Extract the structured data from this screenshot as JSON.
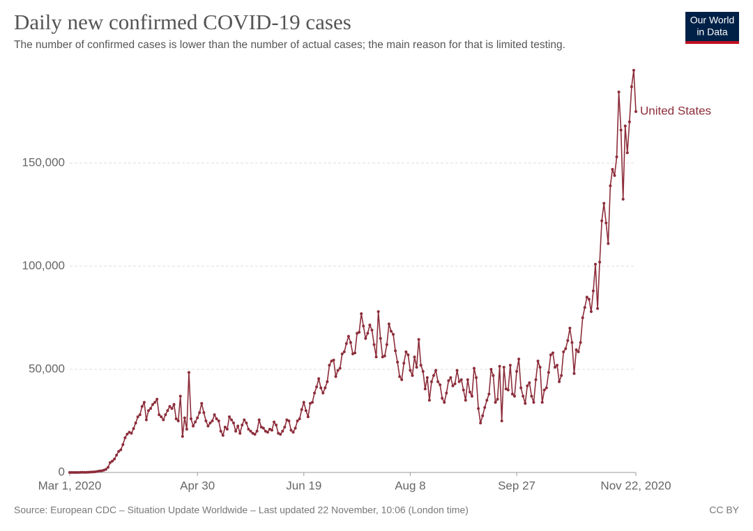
{
  "chart_data": {
    "type": "line",
    "title": "Daily new confirmed COVID-19 cases",
    "subtitle": "The number of confirmed cases is lower than the number of actual cases; the main reason for that is limited testing.",
    "source": "Source: European CDC – Situation Update Worldwide – Last updated 22 November, 10:06 (London time)",
    "license": "CC BY",
    "logo": [
      "Our World",
      "in Data"
    ],
    "x": [
      "2020-03-01",
      "2020-03-02",
      "2020-03-03",
      "2020-03-04",
      "2020-03-05",
      "2020-03-06",
      "2020-03-07",
      "2020-03-08",
      "2020-03-09",
      "2020-03-10",
      "2020-03-11",
      "2020-03-12",
      "2020-03-13",
      "2020-03-14",
      "2020-03-15",
      "2020-03-16",
      "2020-03-17",
      "2020-03-18",
      "2020-03-19",
      "2020-03-20",
      "2020-03-21",
      "2020-03-22",
      "2020-03-23",
      "2020-03-24",
      "2020-03-25",
      "2020-03-26",
      "2020-03-27",
      "2020-03-28",
      "2020-03-29",
      "2020-03-30",
      "2020-03-31",
      "2020-04-01",
      "2020-04-02",
      "2020-04-03",
      "2020-04-04",
      "2020-04-05",
      "2020-04-06",
      "2020-04-07",
      "2020-04-08",
      "2020-04-09",
      "2020-04-10",
      "2020-04-11",
      "2020-04-12",
      "2020-04-13",
      "2020-04-14",
      "2020-04-15",
      "2020-04-16",
      "2020-04-17",
      "2020-04-18",
      "2020-04-19",
      "2020-04-20",
      "2020-04-21",
      "2020-04-22",
      "2020-04-23",
      "2020-04-24",
      "2020-04-25",
      "2020-04-26",
      "2020-04-27",
      "2020-04-28",
      "2020-04-29",
      "2020-04-30",
      "2020-05-01",
      "2020-05-02",
      "2020-05-03",
      "2020-05-04",
      "2020-05-05",
      "2020-05-06",
      "2020-05-07",
      "2020-05-08",
      "2020-05-09",
      "2020-05-10",
      "2020-05-11",
      "2020-05-12",
      "2020-05-13",
      "2020-05-14",
      "2020-05-15",
      "2020-05-16",
      "2020-05-17",
      "2020-05-18",
      "2020-05-19",
      "2020-05-20",
      "2020-05-21",
      "2020-05-22",
      "2020-05-23",
      "2020-05-24",
      "2020-05-25",
      "2020-05-26",
      "2020-05-27",
      "2020-05-28",
      "2020-05-29",
      "2020-05-30",
      "2020-05-31",
      "2020-06-01",
      "2020-06-02",
      "2020-06-03",
      "2020-06-04",
      "2020-06-05",
      "2020-06-06",
      "2020-06-07",
      "2020-06-08",
      "2020-06-09",
      "2020-06-10",
      "2020-06-11",
      "2020-06-12",
      "2020-06-13",
      "2020-06-14",
      "2020-06-15",
      "2020-06-16",
      "2020-06-17",
      "2020-06-18",
      "2020-06-19",
      "2020-06-20",
      "2020-06-21",
      "2020-06-22",
      "2020-06-23",
      "2020-06-24",
      "2020-06-25",
      "2020-06-26",
      "2020-06-27",
      "2020-06-28",
      "2020-06-29",
      "2020-06-30",
      "2020-07-01",
      "2020-07-02",
      "2020-07-03",
      "2020-07-04",
      "2020-07-05",
      "2020-07-06",
      "2020-07-07",
      "2020-07-08",
      "2020-07-09",
      "2020-07-10",
      "2020-07-11",
      "2020-07-12",
      "2020-07-13",
      "2020-07-14",
      "2020-07-15",
      "2020-07-16",
      "2020-07-17",
      "2020-07-18",
      "2020-07-19",
      "2020-07-20",
      "2020-07-21",
      "2020-07-22",
      "2020-07-23",
      "2020-07-24",
      "2020-07-25",
      "2020-07-26",
      "2020-07-27",
      "2020-07-28",
      "2020-07-29",
      "2020-07-30",
      "2020-07-31",
      "2020-08-01",
      "2020-08-02",
      "2020-08-03",
      "2020-08-04",
      "2020-08-05",
      "2020-08-06",
      "2020-08-07",
      "2020-08-08",
      "2020-08-09",
      "2020-08-10",
      "2020-08-11",
      "2020-08-12",
      "2020-08-13",
      "2020-08-14",
      "2020-08-15",
      "2020-08-16",
      "2020-08-17",
      "2020-08-18",
      "2020-08-19",
      "2020-08-20",
      "2020-08-21",
      "2020-08-22",
      "2020-08-23",
      "2020-08-24",
      "2020-08-25",
      "2020-08-26",
      "2020-08-27",
      "2020-08-28",
      "2020-08-29",
      "2020-08-30",
      "2020-08-31",
      "2020-09-01",
      "2020-09-02",
      "2020-09-03",
      "2020-09-04",
      "2020-09-05",
      "2020-09-06",
      "2020-09-07",
      "2020-09-08",
      "2020-09-09",
      "2020-09-10",
      "2020-09-11",
      "2020-09-12",
      "2020-09-13",
      "2020-09-14",
      "2020-09-15",
      "2020-09-16",
      "2020-09-17",
      "2020-09-18",
      "2020-09-19",
      "2020-09-20",
      "2020-09-21",
      "2020-09-22",
      "2020-09-23",
      "2020-09-24",
      "2020-09-25",
      "2020-09-26",
      "2020-09-27",
      "2020-09-28",
      "2020-09-29",
      "2020-09-30",
      "2020-10-01",
      "2020-10-02",
      "2020-10-03",
      "2020-10-04",
      "2020-10-05",
      "2020-10-06",
      "2020-10-07",
      "2020-10-08",
      "2020-10-09",
      "2020-10-10",
      "2020-10-11",
      "2020-10-12",
      "2020-10-13",
      "2020-10-14",
      "2020-10-15",
      "2020-10-16",
      "2020-10-17",
      "2020-10-18",
      "2020-10-19",
      "2020-10-20",
      "2020-10-21",
      "2020-10-22",
      "2020-10-23",
      "2020-10-24",
      "2020-10-25",
      "2020-10-26",
      "2020-10-27",
      "2020-10-28",
      "2020-10-29",
      "2020-10-30",
      "2020-10-31",
      "2020-11-01",
      "2020-11-02",
      "2020-11-03",
      "2020-11-04",
      "2020-11-05",
      "2020-11-06",
      "2020-11-07",
      "2020-11-08",
      "2020-11-09",
      "2020-11-10",
      "2020-11-11",
      "2020-11-12",
      "2020-11-13",
      "2020-11-14",
      "2020-11-15",
      "2020-11-16",
      "2020-11-17",
      "2020-11-18",
      "2020-11-19",
      "2020-11-20",
      "2020-11-21",
      "2020-11-22"
    ],
    "series": [
      {
        "name": "United States",
        "color": "#8c2d3a",
        "values": [
          0,
          3,
          5,
          15,
          20,
          30,
          70,
          60,
          100,
          120,
          200,
          270,
          350,
          500,
          700,
          800,
          1100,
          1500,
          2500,
          4800,
          5500,
          6500,
          8400,
          10200,
          11000,
          13500,
          16800,
          18600,
          19500,
          19000,
          21300,
          24000,
          27000,
          28000,
          32000,
          34000,
          25500,
          30000,
          31000,
          33000,
          34000,
          35500,
          28000,
          27000,
          25500,
          28000,
          30000,
          32000,
          31000,
          33000,
          26000,
          25000,
          37000,
          17500,
          26500,
          21000,
          48500,
          26000,
          22500,
          24500,
          26500,
          29000,
          33500,
          29000,
          25000,
          22500,
          24000,
          25000,
          28000,
          26000,
          25000,
          20000,
          18000,
          22000,
          21000,
          27000,
          25500,
          24000,
          20000,
          22500,
          19000,
          23000,
          25500,
          24000,
          21000,
          20000,
          19000,
          18500,
          20000,
          25500,
          22000,
          21500,
          20000,
          19500,
          21000,
          20500,
          24500,
          23000,
          19000,
          18500,
          20000,
          22000,
          25500,
          25000,
          20500,
          19500,
          21500,
          25000,
          26000,
          30500,
          34000,
          30000,
          27000,
          33500,
          34000,
          38500,
          41500,
          45500,
          41000,
          38500,
          41000,
          44000,
          52000,
          54000,
          54500,
          46500,
          49500,
          50500,
          57500,
          58500,
          62500,
          66000,
          63000,
          57500,
          58000,
          67500,
          68000,
          77000,
          71000,
          65000,
          67500,
          71500,
          69000,
          62000,
          56000,
          78000,
          65000,
          56000,
          56500,
          62000,
          72000,
          68500,
          67000,
          59000,
          53500,
          46500,
          45000,
          53000,
          58500,
          57000,
          49500,
          47000,
          56000,
          51000,
          64500,
          52000,
          49000,
          40500,
          46000,
          35000,
          44000,
          47000,
          49500,
          44000,
          42500,
          36000,
          34000,
          38500,
          44500,
          46000,
          42000,
          43000,
          49500,
          44000,
          45000,
          40000,
          35000,
          45000,
          39000,
          37000,
          50500,
          46000,
          31000,
          24000,
          27500,
          31500,
          35000,
          38000,
          50000,
          47000,
          34000,
          35500,
          51500,
          25000,
          51000,
          40500,
          40000,
          52000,
          38000,
          37000,
          49000,
          55000,
          41000,
          37000,
          33500,
          42000,
          43500,
          37000,
          34000,
          45000,
          54000,
          51000,
          34000,
          40000,
          41000,
          48500,
          57000,
          58000,
          51000,
          52000,
          44000,
          47000,
          58500,
          60000,
          64000,
          70000,
          63000,
          48000,
          59500,
          58500,
          63000,
          75000,
          80000,
          85000,
          84000,
          78000,
          88000,
          101000,
          79500,
          102000,
          122000,
          130500,
          121000,
          111000,
          139000,
          147000,
          144000,
          153000,
          184500,
          166000,
          132500,
          168000,
          155000,
          170000,
          187000,
          195000,
          175000
        ]
      }
    ],
    "xlim": [
      "2020-03-01",
      "2020-11-22"
    ],
    "xticks": [
      {
        "value": "2020-03-01",
        "label": "Mar 1, 2020"
      },
      {
        "value": "2020-04-30",
        "label": "Apr 30"
      },
      {
        "value": "2020-06-19",
        "label": "Jun 19"
      },
      {
        "value": "2020-08-08",
        "label": "Aug 8"
      },
      {
        "value": "2020-09-27",
        "label": "Sep 27"
      },
      {
        "value": "2020-11-22",
        "label": "Nov 22, 2020"
      }
    ],
    "ylim": [
      0,
      198000
    ],
    "yticks": [
      0,
      {
        "value": 50000,
        "label": "50,000"
      },
      {
        "value": 100000,
        "label": "100,000"
      },
      {
        "value": 150000,
        "label": "150,000"
      }
    ],
    "grid": true
  }
}
